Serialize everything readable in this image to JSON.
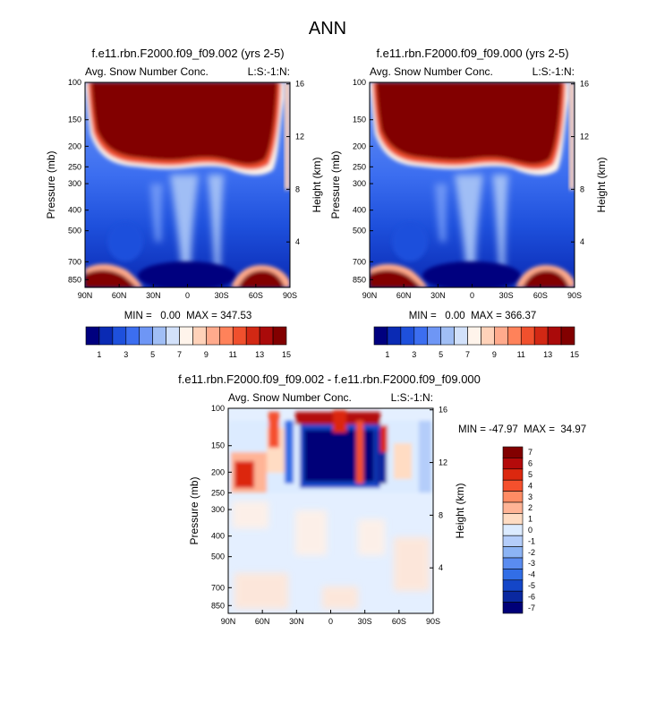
{
  "figure_title": "ANN",
  "chart_data": [
    {
      "type": "heatmap",
      "id": "p1",
      "title": "f.e11.rbn.F2000.f09_f09.002 (yrs 2-5)",
      "left_label": "Avg. Snow Number Conc.",
      "right_label": "L:S:-1:N:",
      "ylabel": "Pressure (mb)",
      "ylabel_right": "Height (km)",
      "x_ticks": [
        "90N",
        "60N",
        "30N",
        "0",
        "30S",
        "60S",
        "90S"
      ],
      "y_ticks": [
        "100",
        "150",
        "200",
        "250",
        "300",
        "400",
        "500",
        "700",
        "850"
      ],
      "y_right_ticks": [
        "16",
        "12",
        "8",
        "4"
      ],
      "stats": "MIN =   0.00  MAX = 347.53",
      "colorbar_labels": [
        "1",
        "3",
        "5",
        "7",
        "9",
        "11",
        "13",
        "15"
      ]
    },
    {
      "type": "heatmap",
      "id": "p2",
      "title": "f.e11.rbn.F2000.f09_f09.000 (yrs 2-5)",
      "left_label": "Avg. Snow Number Conc.",
      "right_label": "L:S:-1:N:",
      "ylabel": "Pressure (mb)",
      "ylabel_right": "Height (km)",
      "x_ticks": [
        "90N",
        "60N",
        "30N",
        "0",
        "30S",
        "60S",
        "90S"
      ],
      "y_ticks": [
        "100",
        "150",
        "200",
        "250",
        "300",
        "400",
        "500",
        "700",
        "850"
      ],
      "y_right_ticks": [
        "16",
        "12",
        "8",
        "4"
      ],
      "stats": "MIN =   0.00  MAX = 366.37",
      "colorbar_labels": [
        "1",
        "3",
        "5",
        "7",
        "9",
        "11",
        "13",
        "15"
      ]
    },
    {
      "type": "heatmap",
      "id": "p3",
      "title": "f.e11.rbn.F2000.f09_f09.002 - f.e11.rbn.F2000.f09_f09.000",
      "left_label": "Avg. Snow Number Conc.",
      "right_label": "L:S:-1:N:",
      "ylabel": "Pressure (mb)",
      "ylabel_right": "Height (km)",
      "x_ticks": [
        "90N",
        "60N",
        "30N",
        "0",
        "30S",
        "60S",
        "90S"
      ],
      "y_ticks": [
        "100",
        "150",
        "200",
        "250",
        "300",
        "400",
        "500",
        "700",
        "850"
      ],
      "y_right_ticks": [
        "16",
        "12",
        "8",
        "4"
      ],
      "stats": "MIN = -47.97  MAX =  34.97",
      "colorbar_labels": [
        "7",
        "6",
        "5",
        "4",
        "3",
        "2",
        "1",
        "0",
        "-1",
        "-2",
        "-3",
        "-4",
        "-5",
        "-6",
        "-7"
      ]
    }
  ],
  "colors": {
    "abs_scale": [
      "#00007f",
      "#0a2ab4",
      "#1e50dc",
      "#3c6ef0",
      "#6e96f5",
      "#a0bef5",
      "#d2e1fa",
      "#fff4eb",
      "#ffd2b9",
      "#ffaa8c",
      "#ff825a",
      "#f0502d",
      "#d22814",
      "#aa0a0a",
      "#820000"
    ],
    "diff_scale": [
      "#820000",
      "#b40a0a",
      "#dc280f",
      "#f5502d",
      "#ff8c64",
      "#ffb496",
      "#ffdcc3",
      "#dcebff",
      "#b4cdfa",
      "#8cb4f5",
      "#5a8cf0",
      "#326ee6",
      "#1446c8",
      "#0a28a0",
      "#000078"
    ]
  }
}
